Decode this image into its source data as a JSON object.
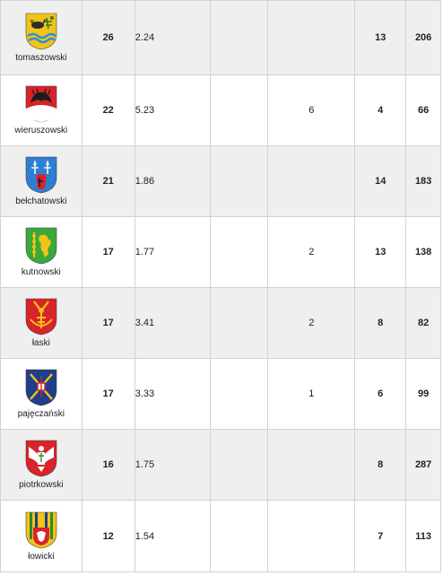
{
  "rows": [
    {
      "name": "tomaszowski",
      "red": "26",
      "val": "2.24",
      "mid": "",
      "green": "13",
      "pink": "206",
      "icon": "tomaszowski-coat-of-arms-icon"
    },
    {
      "name": "wieruszowski",
      "red": "22",
      "val": "5.23",
      "mid": "6",
      "green": "4",
      "pink": "66",
      "icon": "wieruszowski-coat-of-arms-icon"
    },
    {
      "name": "bełchatowski",
      "red": "21",
      "val": "1.86",
      "mid": "",
      "green": "14",
      "pink": "183",
      "icon": "belchatowski-coat-of-arms-icon"
    },
    {
      "name": "kutnowski",
      "red": "17",
      "val": "1.77",
      "mid": "2",
      "green": "13",
      "pink": "138",
      "icon": "kutnowski-coat-of-arms-icon"
    },
    {
      "name": "łaski",
      "red": "17",
      "val": "3.41",
      "mid": "2",
      "green": "8",
      "pink": "82",
      "icon": "laski-coat-of-arms-icon"
    },
    {
      "name": "pajęczański",
      "red": "17",
      "val": "3.33",
      "mid": "1",
      "green": "6",
      "pink": "99",
      "icon": "pajeczanski-coat-of-arms-icon"
    },
    {
      "name": "piotrkowski",
      "red": "16",
      "val": "1.75",
      "mid": "",
      "green": "8",
      "pink": "287",
      "icon": "piotrkowski-coat-of-arms-icon"
    },
    {
      "name": "łowicki",
      "red": "12",
      "val": "1.54",
      "mid": "",
      "green": "7",
      "pink": "113",
      "icon": "lowicki-coat-of-arms-icon"
    }
  ],
  "colors": {
    "red": "#e3262a",
    "green": "#27a11f",
    "pink": "#d4158e",
    "shade": "#efefef",
    "border": "#d2d2d2"
  }
}
